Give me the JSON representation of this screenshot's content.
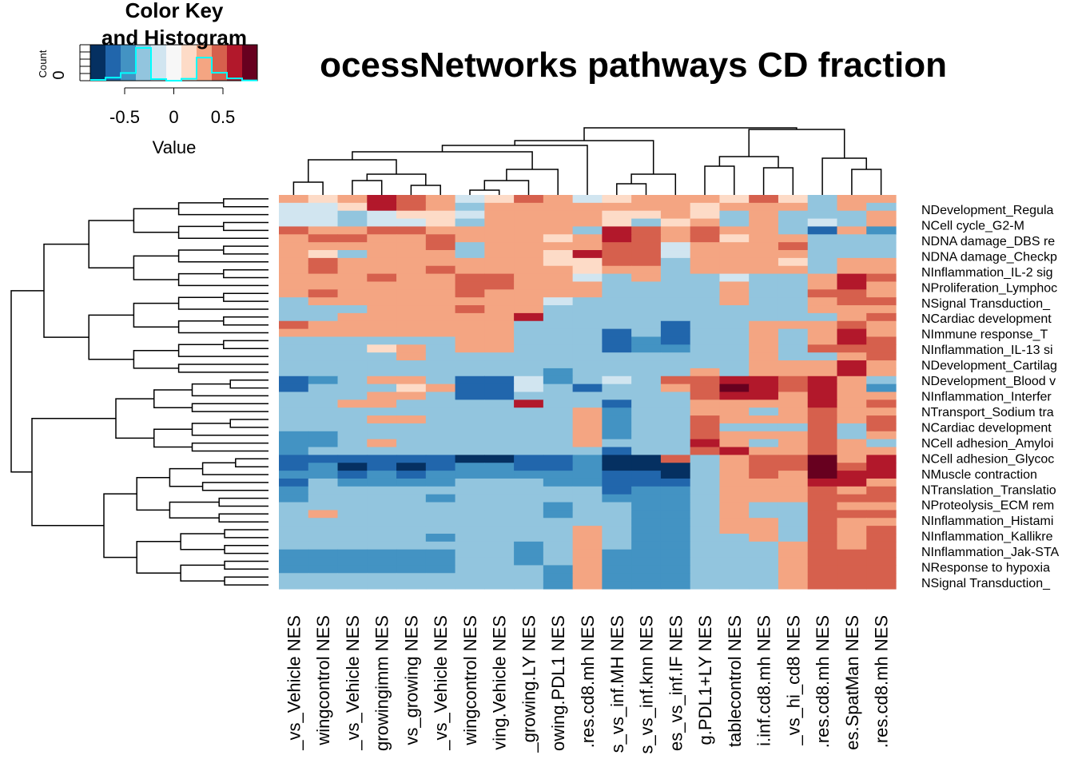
{
  "chart_data": {
    "type": "heatmap",
    "title": "ocessNetworks pathways CD fraction",
    "color_key": {
      "title_line1": "Color Key",
      "title_line2": "and Histogram",
      "count_label": "Count",
      "count_tick": "0",
      "value_label": "Value",
      "ticks": [
        "-0.5",
        "0",
        "0.5"
      ],
      "tick_values": [
        -0.5,
        0,
        0.5
      ],
      "range": [
        -0.85,
        0.85
      ],
      "breaks": 12,
      "palette": [
        "#053061",
        "#2166ac",
        "#4393c3",
        "#92c5de",
        "#d1e5f0",
        "#f7f7f7",
        "#fddbc7",
        "#f4a582",
        "#d6604d",
        "#b2182b",
        "#67001f"
      ],
      "histogram_color": "#00ffff"
    },
    "columns": [
      "_vs_Vehicle NES",
      "wingcontrol NES",
      "_vs_Vehicle NES",
      "growingimm NES",
      "vs_growing NES",
      "_vs_Vehicle NES",
      "wingcontrol NES",
      "ving.Vehicle NES",
      "_growing.LY NES",
      "owing.PDL1 NES",
      ".res.cd8.mh NES",
      "s_vs_inf.MH NES",
      "s_vs_inf.knn NES",
      "es_vs_inf.IF NES",
      "g.PDL1+LY NES",
      "tablecontrol NES",
      "i.inf.cd8.mh NES",
      "_vs_hi_cd8 NES",
      ".res.cd8.mh NES",
      "es.SpatMan NES",
      ".res.cd8.mh NES"
    ],
    "row_labels": [
      "NDevelopment_Regula",
      "NCell cycle_G2-M",
      "NDNA damage_DBS re",
      "NDNA damage_Checkp",
      "NInflammation_IL-2 sig",
      "NProliferation_Lymphoc",
      "NSignal Transduction_",
      "NCardiac development",
      "NImmune response_T",
      "NInflammation_IL-13 si",
      "NDevelopment_Cartilag",
      "NDevelopment_Blood v",
      "NInflammation_Interfer",
      "NTransport_Sodium tra",
      "NCardiac development",
      "NCell adhesion_Amyloi",
      "NCell adhesion_Glycoc",
      "NMuscle contraction",
      "NTranslation_Translatio",
      "NProteolysis_ECM rem",
      "NInflammation_Histami",
      "NInflammation_Kallikre",
      "NInflammation_Jak-STA",
      "NResponse to hypoxia",
      "NSignal Transduction_"
    ],
    "n_rows": 50,
    "value_range": [
      -0.85,
      0.85
    ],
    "values": [
      [
        0.25,
        0.15,
        0.3,
        0.55,
        0.45,
        0.3,
        -0.1,
        0.1,
        0.5,
        0.3,
        -0.1,
        0.1,
        0.3,
        0.3,
        0.3,
        0.2,
        0.45,
        0.1,
        -0.3,
        0.3,
        0.3
      ],
      [
        -0.1,
        -0.1,
        0.2,
        0.55,
        0.5,
        0.35,
        -0.3,
        0.3,
        0.3,
        0.3,
        0.3,
        0.3,
        0.3,
        0.3,
        0.1,
        0.25,
        0.35,
        0.3,
        -0.3,
        0.3,
        -0.3
      ],
      [
        -0.1,
        -0.1,
        -0.3,
        -0.1,
        0.2,
        0.15,
        -0.1,
        0.3,
        0.3,
        0.3,
        0.35,
        0.1,
        0.1,
        0.3,
        0.2,
        -0.3,
        0.35,
        -0.3,
        -0.3,
        -0.3,
        0.25
      ],
      [
        -0.1,
        -0.1,
        -0.3,
        -0.1,
        -0.1,
        0.15,
        -0.3,
        0.3,
        0.3,
        0.25,
        0.3,
        0.2,
        -0.3,
        0.15,
        0.3,
        -0.3,
        0.35,
        -0.3,
        -0.1,
        -0.3,
        0.25
      ],
      [
        0.5,
        0.3,
        0.3,
        0.45,
        0.45,
        0.3,
        0.3,
        0.3,
        0.3,
        0.3,
        -0.3,
        0.6,
        0.5,
        0.3,
        0.5,
        0.3,
        0.3,
        -0.3,
        -0.6,
        0.3,
        -0.5
      ],
      [
        0.3,
        0.45,
        0.45,
        0.3,
        0.3,
        0.45,
        0.3,
        0.25,
        0.3,
        0.1,
        0.3,
        0.6,
        0.45,
        0.35,
        0.45,
        0.1,
        0.3,
        0.3,
        -0.3,
        -0.3,
        -0.3
      ],
      [
        0.3,
        0.3,
        0.3,
        0.3,
        0.3,
        0.45,
        -0.3,
        0.3,
        0.3,
        0.3,
        0.3,
        0.45,
        0.45,
        -0.1,
        0.3,
        0.3,
        0.3,
        0.45,
        -0.3,
        -0.3,
        -0.3
      ],
      [
        0.3,
        0.2,
        -0.3,
        0.3,
        0.3,
        0.3,
        -0.3,
        0.3,
        0.3,
        0.2,
        0.6,
        0.45,
        0.5,
        -0.1,
        0.3,
        0.3,
        0.3,
        0.3,
        -0.3,
        -0.3,
        -0.3
      ],
      [
        0.3,
        0.45,
        0.3,
        0.3,
        0.3,
        0.3,
        0.3,
        0.3,
        0.3,
        0.1,
        0.1,
        0.45,
        0.45,
        -0.3,
        0.3,
        0.3,
        0.3,
        0.1,
        -0.3,
        0.3,
        0.3
      ],
      [
        0.3,
        0.45,
        0.3,
        0.3,
        0.3,
        0.45,
        0.3,
        0.3,
        0.3,
        0.3,
        0.15,
        0.3,
        0.3,
        -0.3,
        0.3,
        0.3,
        0.3,
        0.3,
        -0.3,
        0.3,
        0.3
      ],
      [
        0.3,
        0.3,
        0.3,
        0.45,
        0.3,
        0.3,
        0.45,
        0.45,
        0.3,
        0.3,
        -0.1,
        -0.3,
        0.3,
        -0.3,
        -0.3,
        -0.1,
        -0.3,
        -0.3,
        0.3,
        0.55,
        0.45
      ],
      [
        0.3,
        0.3,
        0.3,
        0.3,
        0.3,
        0.3,
        0.45,
        0.45,
        0.3,
        0.3,
        0.3,
        -0.3,
        -0.3,
        -0.3,
        -0.3,
        0.3,
        -0.3,
        -0.3,
        0.3,
        0.55,
        0.3
      ],
      [
        0.3,
        0.45,
        0.3,
        0.3,
        0.3,
        0.3,
        0.45,
        0.3,
        0.3,
        0.3,
        0.3,
        -0.3,
        -0.3,
        -0.3,
        -0.3,
        0.3,
        -0.3,
        -0.3,
        0.45,
        0.45,
        0.3
      ],
      [
        -0.3,
        0.3,
        0.3,
        0.3,
        0.3,
        0.3,
        0.3,
        0.3,
        0.3,
        -0.1,
        -0.3,
        -0.3,
        -0.3,
        -0.3,
        -0.3,
        0.3,
        -0.3,
        -0.3,
        0.3,
        0.45,
        0.45
      ],
      [
        -0.3,
        -0.3,
        -0.3,
        0.3,
        0.3,
        0.3,
        0.45,
        0.3,
        0.3,
        -0.3,
        -0.3,
        -0.3,
        -0.3,
        -0.3,
        -0.3,
        -0.3,
        -0.3,
        -0.3,
        0.3,
        0.3,
        0.3
      ],
      [
        -0.3,
        -0.3,
        0.3,
        0.3,
        0.3,
        0.3,
        0.3,
        0.3,
        0.65,
        -0.3,
        -0.3,
        -0.3,
        -0.3,
        -0.3,
        -0.3,
        -0.3,
        -0.3,
        -0.3,
        -0.3,
        0.3,
        0.45
      ],
      [
        0.45,
        0.3,
        0.3,
        0.3,
        0.3,
        0.3,
        0.3,
        0.3,
        -0.3,
        -0.3,
        -0.3,
        -0.3,
        -0.3,
        -0.6,
        -0.3,
        -0.3,
        0.3,
        0.3,
        0.3,
        0.45,
        0.3
      ],
      [
        0.3,
        0.3,
        0.3,
        0.3,
        0.3,
        0.3,
        0.3,
        0.3,
        -0.3,
        -0.3,
        -0.3,
        -0.6,
        -0.3,
        -0.6,
        -0.3,
        -0.3,
        0.3,
        -0.3,
        0.3,
        0.55,
        0.3
      ],
      [
        -0.3,
        -0.3,
        -0.3,
        -0.3,
        -0.3,
        -0.3,
        0.3,
        0.3,
        -0.3,
        -0.3,
        -0.3,
        -0.6,
        -0.5,
        -0.6,
        -0.3,
        -0.3,
        0.3,
        -0.3,
        0.3,
        0.55,
        0.45
      ],
      [
        -0.3,
        -0.3,
        -0.3,
        0.1,
        0.3,
        -0.3,
        0.3,
        0.3,
        -0.3,
        -0.3,
        -0.3,
        -0.6,
        -0.5,
        -0.5,
        -0.3,
        -0.3,
        0.3,
        -0.3,
        0.45,
        0.45,
        0.45
      ],
      [
        -0.3,
        -0.3,
        -0.3,
        -0.3,
        0.3,
        -0.3,
        -0.3,
        -0.3,
        -0.3,
        -0.3,
        -0.3,
        -0.3,
        -0.3,
        -0.3,
        -0.3,
        -0.3,
        0.3,
        -0.3,
        -0.3,
        0.3,
        0.45
      ],
      [
        -0.3,
        -0.3,
        -0.3,
        -0.3,
        -0.3,
        -0.3,
        -0.3,
        -0.3,
        -0.3,
        -0.3,
        -0.3,
        -0.3,
        -0.3,
        -0.3,
        -0.3,
        -0.3,
        0.3,
        0.3,
        0.3,
        0.6,
        0.3
      ],
      [
        -0.3,
        -0.3,
        -0.3,
        -0.3,
        -0.3,
        -0.3,
        -0.3,
        -0.3,
        -0.3,
        -0.5,
        -0.3,
        -0.3,
        -0.3,
        -0.3,
        0.3,
        -0.3,
        0.3,
        0.3,
        0.3,
        0.6,
        0.3
      ],
      [
        -0.6,
        -0.5,
        -0.3,
        0.3,
        0.3,
        -0.3,
        -0.6,
        -0.6,
        -0.1,
        -0.5,
        -0.3,
        -0.1,
        -0.3,
        0.45,
        0.45,
        0.6,
        0.6,
        0.45,
        0.6,
        0.3,
        -0.3
      ],
      [
        -0.6,
        -0.3,
        -0.3,
        -0.3,
        0.1,
        0.3,
        -0.6,
        -0.6,
        -0.1,
        -0.3,
        -0.6,
        -0.3,
        -0.3,
        0.3,
        0.45,
        0.7,
        0.55,
        0.45,
        0.55,
        0.3,
        -0.5
      ],
      [
        -0.3,
        -0.3,
        -0.3,
        0.3,
        0.3,
        -0.3,
        -0.6,
        -0.6,
        -0.3,
        -0.3,
        -0.3,
        -0.3,
        -0.3,
        -0.3,
        0.45,
        0.6,
        0.55,
        0.3,
        0.55,
        0.3,
        0.3
      ],
      [
        -0.3,
        -0.3,
        0.3,
        0.3,
        -0.3,
        -0.3,
        -0.3,
        -0.3,
        0.55,
        -0.3,
        -0.3,
        -0.6,
        -0.3,
        -0.3,
        0.3,
        0.3,
        0.3,
        0.3,
        0.55,
        0.3,
        0.45
      ],
      [
        -0.3,
        -0.3,
        -0.3,
        -0.3,
        -0.3,
        -0.3,
        -0.3,
        -0.3,
        -0.3,
        -0.3,
        0.3,
        -0.5,
        -0.3,
        -0.3,
        0.3,
        0.3,
        -0.3,
        0.3,
        0.45,
        0.3,
        0.3
      ],
      [
        -0.3,
        -0.3,
        -0.3,
        0.3,
        0.3,
        -0.3,
        -0.3,
        -0.3,
        -0.3,
        -0.3,
        0.3,
        -0.5,
        -0.3,
        -0.3,
        0.45,
        0.3,
        0.3,
        0.3,
        0.45,
        0.3,
        0.45
      ],
      [
        -0.3,
        -0.3,
        -0.3,
        -0.3,
        -0.3,
        -0.3,
        -0.3,
        -0.3,
        -0.3,
        -0.3,
        0.3,
        -0.5,
        -0.3,
        -0.3,
        0.45,
        -0.3,
        -0.3,
        -0.3,
        0.45,
        -0.3,
        0.45
      ],
      [
        -0.5,
        -0.5,
        -0.3,
        -0.3,
        -0.3,
        -0.3,
        -0.3,
        -0.3,
        -0.3,
        -0.3,
        0.3,
        -0.5,
        -0.3,
        -0.3,
        0.45,
        0.3,
        0.3,
        0.3,
        0.45,
        -0.3,
        0.3
      ],
      [
        -0.5,
        -0.5,
        -0.3,
        0.3,
        -0.3,
        -0.3,
        -0.3,
        -0.3,
        -0.3,
        -0.3,
        0.3,
        -0.3,
        -0.3,
        -0.3,
        0.55,
        0.3,
        -0.3,
        0.3,
        0.45,
        0.3,
        -0.3
      ],
      [
        -0.5,
        -0.3,
        -0.3,
        -0.3,
        -0.3,
        -0.3,
        -0.3,
        -0.3,
        -0.3,
        -0.3,
        -0.3,
        -0.6,
        -0.3,
        -0.3,
        0.45,
        0.55,
        0.3,
        0.3,
        0.45,
        0.3,
        0.3
      ],
      [
        -0.6,
        -0.6,
        -0.6,
        -0.6,
        -0.6,
        -0.6,
        -0.8,
        -0.8,
        -0.6,
        -0.6,
        -0.5,
        -0.85,
        -0.85,
        0.45,
        -0.3,
        0.3,
        0.45,
        0.5,
        0.8,
        0.3,
        0.55
      ],
      [
        -0.6,
        -0.5,
        -0.85,
        -0.6,
        -0.85,
        -0.6,
        -0.5,
        -0.5,
        -0.6,
        -0.6,
        -0.5,
        -0.85,
        -0.85,
        -0.85,
        -0.3,
        0.3,
        0.45,
        0.5,
        0.85,
        0.45,
        0.6
      ],
      [
        -0.5,
        -0.5,
        -0.6,
        -0.5,
        -0.6,
        -0.5,
        -0.5,
        -0.5,
        -0.5,
        -0.5,
        -0.5,
        -0.6,
        -0.6,
        -0.85,
        -0.3,
        0.3,
        0.45,
        0.3,
        0.7,
        0.6,
        0.6
      ],
      [
        -0.6,
        -0.3,
        -0.5,
        -0.5,
        -0.5,
        -0.5,
        -0.3,
        -0.3,
        -0.3,
        -0.5,
        -0.5,
        -0.6,
        -0.6,
        -0.6,
        -0.3,
        0.3,
        0.3,
        0.3,
        0.6,
        0.55,
        0.3
      ],
      [
        -0.5,
        -0.3,
        -0.3,
        -0.3,
        -0.3,
        -0.3,
        -0.3,
        -0.3,
        -0.3,
        -0.3,
        -0.3,
        -0.6,
        -0.5,
        -0.5,
        -0.3,
        0.3,
        0.3,
        0.3,
        0.5,
        0.3,
        0.45
      ],
      [
        -0.5,
        -0.3,
        -0.3,
        -0.3,
        -0.3,
        -0.5,
        -0.3,
        -0.3,
        -0.3,
        -0.3,
        -0.3,
        -0.5,
        -0.5,
        -0.5,
        -0.3,
        0.3,
        0.3,
        0.3,
        0.45,
        0.45,
        0.45
      ],
      [
        -0.3,
        -0.3,
        -0.3,
        -0.3,
        -0.3,
        -0.3,
        -0.3,
        -0.3,
        -0.3,
        -0.5,
        -0.3,
        -0.3,
        -0.5,
        -0.5,
        -0.3,
        0.3,
        -0.3,
        -0.3,
        0.45,
        0.3,
        0.3
      ],
      [
        -0.3,
        0.3,
        -0.3,
        -0.3,
        -0.3,
        -0.3,
        -0.3,
        -0.3,
        -0.3,
        -0.5,
        -0.3,
        -0.3,
        -0.5,
        -0.5,
        -0.3,
        0.3,
        -0.3,
        -0.3,
        0.45,
        0.45,
        0.45
      ],
      [
        -0.3,
        -0.3,
        -0.3,
        -0.3,
        -0.3,
        -0.3,
        -0.3,
        -0.3,
        -0.3,
        -0.3,
        -0.3,
        -0.3,
        -0.5,
        -0.5,
        -0.3,
        0.3,
        0.3,
        -0.3,
        0.45,
        0.3,
        0.3
      ],
      [
        -0.3,
        -0.3,
        -0.3,
        -0.3,
        -0.3,
        -0.3,
        -0.3,
        -0.3,
        -0.3,
        -0.3,
        0.3,
        -0.3,
        -0.5,
        -0.5,
        -0.3,
        0.3,
        0.3,
        -0.3,
        0.45,
        0.3,
        0.45
      ],
      [
        -0.3,
        -0.3,
        -0.3,
        -0.3,
        -0.3,
        -0.5,
        -0.3,
        -0.3,
        -0.3,
        -0.3,
        0.3,
        -0.3,
        -0.5,
        -0.5,
        -0.3,
        -0.3,
        0.3,
        -0.3,
        0.45,
        0.3,
        0.45
      ],
      [
        -0.3,
        -0.3,
        -0.3,
        -0.3,
        -0.3,
        -0.3,
        -0.3,
        -0.3,
        -0.5,
        -0.3,
        0.3,
        -0.3,
        -0.5,
        -0.5,
        -0.3,
        -0.3,
        -0.3,
        0.3,
        0.45,
        0.3,
        0.45
      ],
      [
        -0.5,
        -0.5,
        -0.5,
        -0.5,
        -0.5,
        -0.5,
        -0.3,
        -0.3,
        -0.5,
        -0.3,
        0.3,
        -0.5,
        -0.5,
        -0.5,
        -0.3,
        -0.3,
        -0.3,
        0.3,
        0.45,
        0.45,
        0.45
      ],
      [
        -0.5,
        -0.5,
        -0.5,
        -0.5,
        -0.5,
        -0.5,
        -0.3,
        -0.3,
        -0.5,
        -0.3,
        0.3,
        -0.5,
        -0.5,
        -0.5,
        -0.3,
        -0.3,
        -0.3,
        0.3,
        0.45,
        0.45,
        0.45
      ],
      [
        -0.5,
        -0.5,
        -0.5,
        -0.5,
        -0.5,
        -0.5,
        -0.3,
        -0.3,
        -0.3,
        -0.5,
        0.3,
        -0.5,
        -0.5,
        -0.5,
        -0.3,
        -0.3,
        -0.3,
        0.3,
        0.45,
        0.45,
        0.45
      ],
      [
        -0.3,
        -0.3,
        -0.3,
        -0.3,
        -0.3,
        -0.3,
        -0.3,
        -0.3,
        -0.3,
        -0.5,
        0.3,
        -0.5,
        -0.5,
        -0.5,
        -0.3,
        -0.3,
        -0.3,
        0.3,
        0.45,
        0.45,
        0.45
      ],
      [
        -0.3,
        -0.3,
        -0.3,
        -0.3,
        -0.3,
        -0.3,
        -0.3,
        -0.3,
        -0.3,
        -0.5,
        0.3,
        -0.5,
        -0.5,
        -0.5,
        -0.3,
        -0.3,
        -0.3,
        0.3,
        0.45,
        0.45,
        0.45
      ]
    ]
  }
}
